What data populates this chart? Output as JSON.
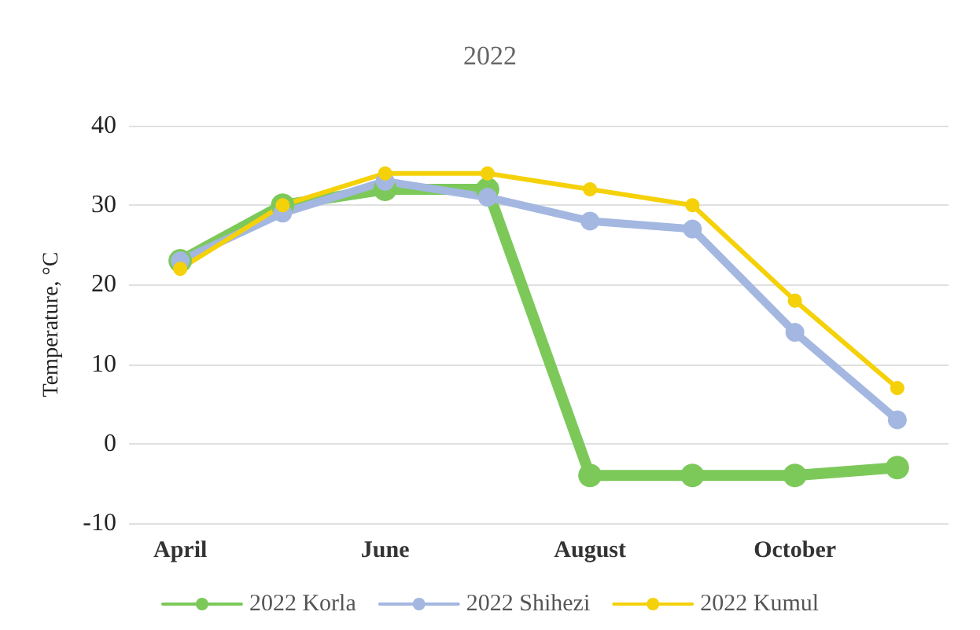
{
  "chart_data": {
    "type": "line",
    "title": "2022",
    "ylabel": "Temperature, °C",
    "categories": [
      "April",
      null,
      "June",
      null,
      "August",
      null,
      "October",
      null
    ],
    "series": [
      {
        "name": "2022 Korla",
        "color": "#7cc95a",
        "values": [
          23,
          30,
          32,
          32,
          -4,
          -4,
          -4,
          -3
        ]
      },
      {
        "name": "2022 Shihezi",
        "color": "#a3b7e0",
        "values": [
          23,
          29,
          33,
          31,
          28,
          27,
          14,
          3
        ]
      },
      {
        "name": "2022 Kumul",
        "color": "#f5d10a",
        "values": [
          22,
          30,
          34,
          34,
          32,
          30,
          18,
          7
        ]
      }
    ],
    "ylim": [
      -10,
      40
    ],
    "yticks": [
      -10,
      0,
      10,
      20,
      30,
      40
    ],
    "grid": "y",
    "legend": "bottom",
    "marker": "circle",
    "line_style": "solid"
  }
}
